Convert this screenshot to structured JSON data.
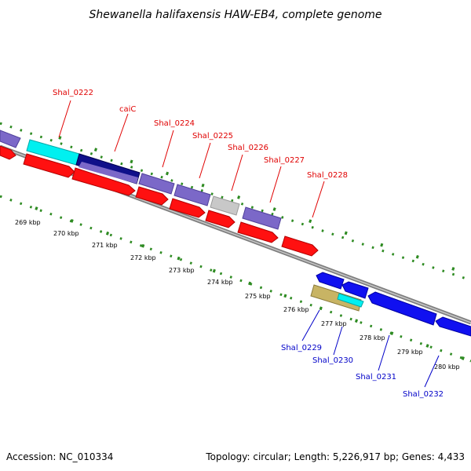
{
  "title": "Shewanella halifaxensis HAW-EB4, complete genome",
  "footer": {
    "accession": "Accession: NC_010334",
    "summary": "Topology: circular; Length: 5,226,917 bp; Genes: 4,433"
  },
  "colors": {
    "backbone": "#7f7f7f",
    "tick": "#2e8b22",
    "cds_red": "#ff1010",
    "cds_purple": "#7b68c8",
    "cds_cyan": "#00f0f0",
    "cds_navy": "#10108a",
    "cds_gray": "#c8c8c8",
    "cds_blue": "#1010f0",
    "cds_khaki": "#c8b464",
    "label_red": "#e00000",
    "label_blue": "#0000c8"
  },
  "kbp_labels": [
    "269 kbp",
    "270 kbp",
    "271 kbp",
    "272 kbp",
    "273 kbp",
    "274 kbp",
    "275 kbp",
    "276 kbp",
    "277 kbp",
    "278 kbp",
    "279 kbp",
    "280 kbp"
  ],
  "gene_labels_top": [
    "Shal_0222",
    "caiC",
    "Shal_0224",
    "Shal_0225",
    "Shal_0226",
    "Shal_0227",
    "Shal_0228"
  ],
  "gene_labels_bottom": [
    "Shal_0229",
    "Shal_0230",
    "Shal_0231",
    "Shal_0232"
  ]
}
